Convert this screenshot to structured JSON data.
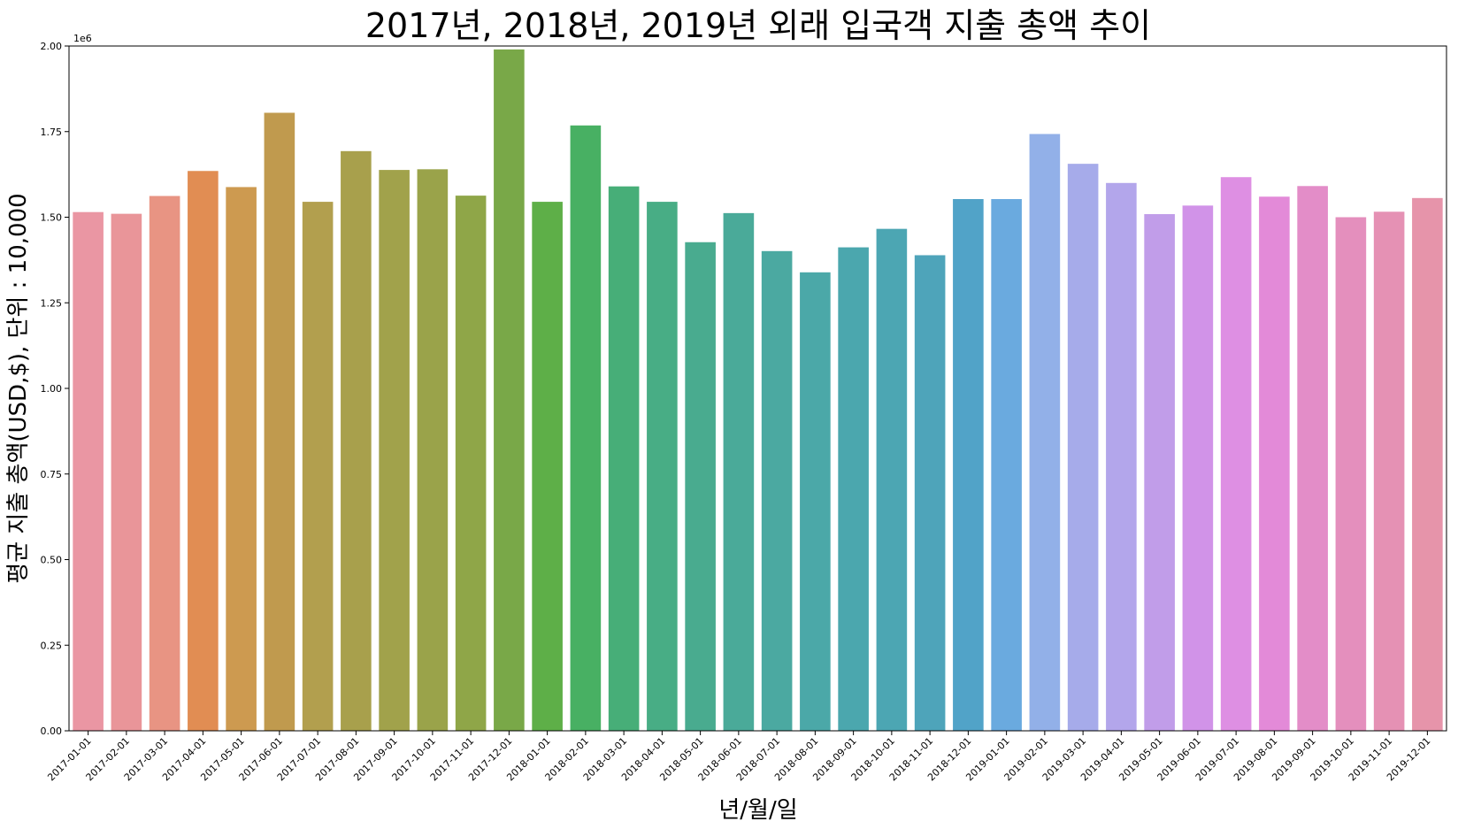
{
  "chart_data": {
    "type": "bar",
    "title": "2017년, 2018년, 2019년 외래 입국객 지출 총액 추이",
    "xlabel": "년/월/일",
    "ylabel": "평균 지출 총액(USD,$), 단위 : 10,000",
    "offset_text": "1e6",
    "ylim": [
      0,
      2000000
    ],
    "yticks": [
      0,
      250000,
      500000,
      750000,
      1000000,
      1250000,
      1500000,
      1750000,
      2000000
    ],
    "ytick_labels": [
      "0.00",
      "0.25",
      "0.50",
      "0.75",
      "1.00",
      "1.25",
      "1.50",
      "1.75",
      "2.00"
    ],
    "grid": false,
    "categories": [
      "2017-01-01",
      "2017-02-01",
      "2017-03-01",
      "2017-04-01",
      "2017-05-01",
      "2017-06-01",
      "2017-07-01",
      "2017-08-01",
      "2017-09-01",
      "2017-10-01",
      "2017-11-01",
      "2017-12-01",
      "2018-01-01",
      "2018-02-01",
      "2018-03-01",
      "2018-04-01",
      "2018-05-01",
      "2018-06-01",
      "2018-07-01",
      "2018-08-01",
      "2018-09-01",
      "2018-10-01",
      "2018-11-01",
      "2018-12-01",
      "2019-01-01",
      "2019-02-01",
      "2019-03-01",
      "2019-04-01",
      "2019-05-01",
      "2019-06-01",
      "2019-07-01",
      "2019-08-01",
      "2019-09-01",
      "2019-10-01",
      "2019-11-01",
      "2019-12-01"
    ],
    "values": [
      1515000,
      1510000,
      1562000,
      1635000,
      1588000,
      1805000,
      1545000,
      1693000,
      1638000,
      1640000,
      1563000,
      1990000,
      1545000,
      1768000,
      1590000,
      1545000,
      1427000,
      1512000,
      1401000,
      1339000,
      1412000,
      1466000,
      1389000,
      1553000,
      1553000,
      1743000,
      1656000,
      1600000,
      1509000,
      1534000,
      1617000,
      1560000,
      1591000,
      1500000,
      1516000,
      1556000
    ],
    "colors": [
      "#ea96a3",
      "#e99599",
      "#e89483",
      "#e18d53",
      "#cd9a50",
      "#c09a4e",
      "#b29f4e",
      "#a8a04c",
      "#a1a24b",
      "#9aa34a",
      "#8fa648",
      "#79a848",
      "#5eaf48",
      "#48b063",
      "#47ae78",
      "#48ad85",
      "#49ab8f",
      "#4aaa99",
      "#4ba9a1",
      "#4ba8a8",
      "#4ba7ae",
      "#4ca6b3",
      "#4ea4ba",
      "#51a3c8",
      "#6aaadf",
      "#92b0e8",
      "#a6abea",
      "#b3a6eb",
      "#c19de9",
      "#d193e8",
      "#de8fe3",
      "#e38ad8",
      "#e38dc8",
      "#e48fbd",
      "#e591b4",
      "#e694aa"
    ]
  }
}
